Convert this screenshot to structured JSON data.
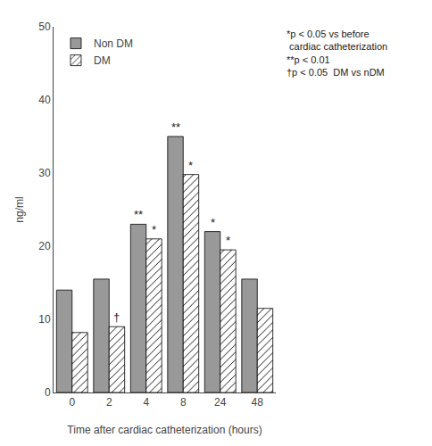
{
  "chart_data": {
    "type": "bar",
    "categories": [
      "0",
      "2",
      "4",
      "8",
      "24",
      "48"
    ],
    "series": [
      {
        "name": "Non DM",
        "color": "#999999",
        "values": [
          14.0,
          15.5,
          23.0,
          35.0,
          22.0,
          15.5
        ]
      },
      {
        "name": "DM",
        "color": "#ffffff",
        "marker": "hatch",
        "values": [
          8.2,
          9.0,
          21.0,
          29.8,
          19.5,
          11.5
        ]
      }
    ],
    "xlabel": "Time after cardiac catheterization (hours)",
    "ylabel": "ng/ml",
    "ylim": [
      0,
      50
    ],
    "yticks": [
      0,
      10,
      20,
      30,
      40,
      50
    ],
    "grid": false,
    "legend": "upper left",
    "annotations": [
      {
        "text": "**",
        "category": "4",
        "series": "Non DM"
      },
      {
        "text": "**",
        "category": "8",
        "series": "Non DM"
      },
      {
        "text": "*",
        "category": "24",
        "series": "Non DM"
      },
      {
        "text": "†",
        "category": "2",
        "series": "DM"
      },
      {
        "text": "*",
        "category": "4",
        "series": "DM"
      },
      {
        "text": "*",
        "category": "8",
        "series": "DM"
      },
      {
        "text": "*",
        "category": "24",
        "series": "DM"
      }
    ],
    "notes": [
      "*p < 0.05 vs before",
      " cardiac catheterization",
      "**p < 0.01",
      "†p < 0.05  DM vs nDM"
    ]
  }
}
